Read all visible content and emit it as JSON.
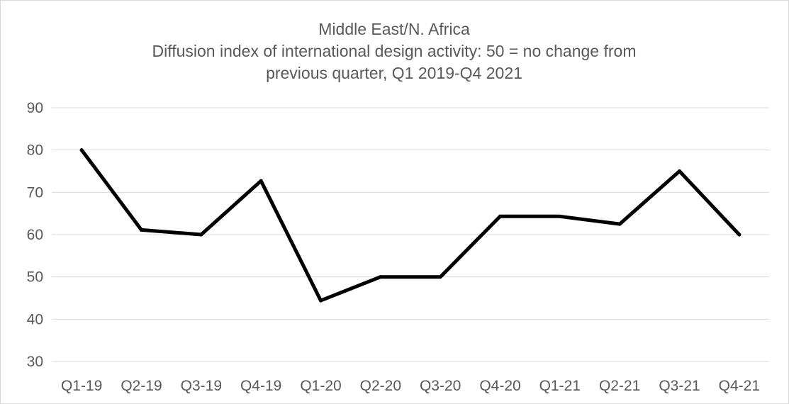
{
  "chart_data": {
    "type": "line",
    "title_lines": [
      "Middle East/N. Africa",
      "Diffusion index of international design activity: 50 = no change from",
      "previous quarter, Q1 2019-Q4 2021"
    ],
    "xlabel": "",
    "ylabel": "",
    "categories": [
      "Q1-19",
      "Q2-19",
      "Q3-19",
      "Q4-19",
      "Q1-20",
      "Q2-20",
      "Q3-20",
      "Q4-20",
      "Q1-21",
      "Q2-21",
      "Q3-21",
      "Q4-21"
    ],
    "series": [
      {
        "values": [
          80,
          61.1,
          60,
          72.7,
          44.4,
          50,
          50,
          64.3,
          64.3,
          62.5,
          75,
          60
        ],
        "color": "#000000"
      }
    ],
    "ylim": [
      30,
      90
    ],
    "yticks": [
      30,
      40,
      50,
      60,
      70,
      80,
      90
    ],
    "grid": true,
    "legend": "none"
  }
}
